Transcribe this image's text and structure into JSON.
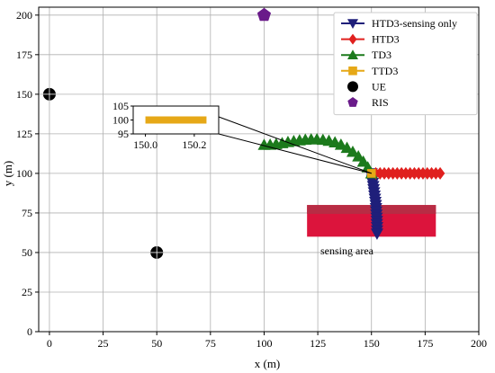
{
  "chart_data": {
    "type": "scatter",
    "title": "",
    "xlabel": "x (m)",
    "ylabel": "y (m)",
    "xlim": [
      -5,
      200
    ],
    "ylim": [
      0,
      205
    ],
    "xticks": [
      0,
      25,
      50,
      75,
      100,
      125,
      150,
      175,
      200
    ],
    "yticks": [
      0,
      25,
      50,
      75,
      100,
      125,
      150,
      175,
      200
    ],
    "grid": true,
    "legend_position": "top-right",
    "series": [
      {
        "name": "HTD3-sensing only",
        "color": "#1f1f7a",
        "marker": "triangle-down",
        "x": [
          150.0,
          150.2,
          150.4,
          150.6,
          150.8,
          151.0,
          151.2,
          151.4,
          151.6,
          151.8,
          152.0,
          152.1,
          152.2,
          152.3,
          152.4,
          152.5,
          152.5,
          152.6,
          152.6,
          152.6
        ],
        "y": [
          100,
          98,
          96,
          94,
          92,
          90,
          88,
          86,
          84,
          82,
          80,
          78,
          76,
          74,
          72,
          70,
          68,
          66,
          64,
          62
        ]
      },
      {
        "name": "HTD3",
        "color": "#e0201e",
        "marker": "diamond",
        "x": [
          152,
          154,
          156,
          158,
          160,
          162,
          164,
          166,
          168,
          170,
          172,
          174,
          176,
          178,
          180,
          182
        ],
        "y": [
          100,
          100,
          100,
          100,
          100,
          100,
          100,
          100,
          100,
          100,
          100,
          100,
          100,
          100,
          100,
          100
        ]
      },
      {
        "name": "TD3",
        "color": "#1c7a1c",
        "marker": "triangle-up",
        "x": [
          150.0,
          148.3,
          146.2,
          143.9,
          141.3,
          138.6,
          135.8,
          133.0,
          130.2,
          127.4,
          124.6,
          121.9,
          119.2,
          116.5,
          113.8,
          111.1,
          108.4,
          105.6,
          102.8,
          100.0
        ],
        "y": [
          100.0,
          103.8,
          107.4,
          110.7,
          113.6,
          116.1,
          118.1,
          119.6,
          120.6,
          121.2,
          121.5,
          121.5,
          121.3,
          120.9,
          120.4,
          119.8,
          119.1,
          118.5,
          118.1,
          118.0
        ]
      },
      {
        "name": "TTD3",
        "color": "#e6a817",
        "marker": "square",
        "x": [
          150.0
        ],
        "y": [
          100.0
        ]
      },
      {
        "name": "UE",
        "color": "#000000",
        "marker": "circle",
        "x": [
          0,
          50
        ],
        "y": [
          150,
          50
        ]
      },
      {
        "name": "RIS",
        "color": "#6a1b8a",
        "marker": "pentagon",
        "x": [
          100
        ],
        "y": [
          200
        ]
      }
    ],
    "sensing_area": {
      "label": "sensing area",
      "x_range": [
        120,
        180
      ],
      "y_range": [
        60,
        80
      ]
    },
    "inset": {
      "xlim": [
        149.95,
        150.3
      ],
      "ylim": [
        95,
        105
      ],
      "xticks": [
        "150.0",
        "150.2"
      ],
      "yticks": [
        "95",
        "100",
        "105"
      ],
      "line_y": 100,
      "line_x_range": [
        150.0,
        150.25
      ],
      "zoom_point": [
        150,
        100
      ]
    }
  }
}
